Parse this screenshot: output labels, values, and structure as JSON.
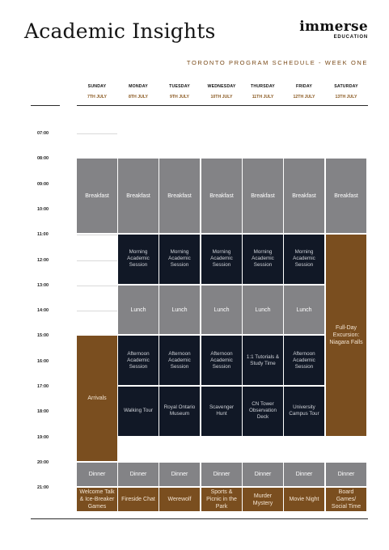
{
  "header": {
    "title": "Academic Insights",
    "logo_main": "immerse",
    "logo_sub": "EDUCATION",
    "subtitle": "TORONTO PROGRAM SCHEDULE - WEEK ONE"
  },
  "days": [
    {
      "name": "SUNDAY",
      "date": "7TH JULY"
    },
    {
      "name": "MONDAY",
      "date": "8TH JULY"
    },
    {
      "name": "TUESDAY",
      "date": "9TH JULY"
    },
    {
      "name": "WEDNESDAY",
      "date": "10TH JULY"
    },
    {
      "name": "THURSDAY",
      "date": "11TH JULY"
    },
    {
      "name": "FRIDAY",
      "date": "12TH JULY"
    },
    {
      "name": "SATURDAY",
      "date": "13TH JULY"
    }
  ],
  "times": [
    "07:00",
    "08:00",
    "09:00",
    "10:00",
    "11:00",
    "12:00",
    "13:00",
    "14:00",
    "15:00",
    "16:00",
    "17:00",
    "18:00",
    "19:00",
    "20:00",
    "21:00"
  ],
  "events": [
    {
      "day": 1,
      "start": 1,
      "end": 4,
      "style": "grey",
      "label": "Breakfast"
    },
    {
      "day": 2,
      "start": 1,
      "end": 4,
      "style": "grey",
      "label": "Breakfast"
    },
    {
      "day": 3,
      "start": 1,
      "end": 4,
      "style": "grey",
      "label": "Breakfast"
    },
    {
      "day": 4,
      "start": 1,
      "end": 4,
      "style": "grey",
      "label": "Breakfast"
    },
    {
      "day": 5,
      "start": 1,
      "end": 4,
      "style": "grey",
      "label": "Breakfast"
    },
    {
      "day": 6,
      "start": 1,
      "end": 4,
      "style": "grey",
      "label": "Breakfast"
    },
    {
      "day": 7,
      "start": 1,
      "end": 4,
      "style": "grey",
      "label": "Breakfast"
    },
    {
      "day": 2,
      "start": 4,
      "end": 6,
      "style": "dark",
      "label": "Morning Academic Session"
    },
    {
      "day": 3,
      "start": 4,
      "end": 6,
      "style": "dark",
      "label": "Morning Academic Session"
    },
    {
      "day": 4,
      "start": 4,
      "end": 6,
      "style": "dark",
      "label": "Morning Academic Session"
    },
    {
      "day": 5,
      "start": 4,
      "end": 6,
      "style": "dark",
      "label": "Morning Academic Session"
    },
    {
      "day": 6,
      "start": 4,
      "end": 6,
      "style": "dark",
      "label": "Morning Academic Session"
    },
    {
      "day": 7,
      "start": 4,
      "end": 12,
      "style": "brown",
      "label": "Full-Day Excursion: Niagara Falls"
    },
    {
      "day": 2,
      "start": 6,
      "end": 8,
      "style": "grey",
      "label": "Lunch"
    },
    {
      "day": 3,
      "start": 6,
      "end": 8,
      "style": "grey",
      "label": "Lunch"
    },
    {
      "day": 4,
      "start": 6,
      "end": 8,
      "style": "grey",
      "label": "Lunch"
    },
    {
      "day": 5,
      "start": 6,
      "end": 8,
      "style": "grey",
      "label": "Lunch"
    },
    {
      "day": 6,
      "start": 6,
      "end": 8,
      "style": "grey",
      "label": "Lunch"
    },
    {
      "day": 1,
      "start": 8,
      "end": 13,
      "style": "brown",
      "label": "Arrivals"
    },
    {
      "day": 2,
      "start": 8,
      "end": 10,
      "style": "dark",
      "label": "Afternoon Academic Session"
    },
    {
      "day": 3,
      "start": 8,
      "end": 10,
      "style": "dark",
      "label": "Afternoon Academic Session"
    },
    {
      "day": 4,
      "start": 8,
      "end": 10,
      "style": "dark",
      "label": "Afternoon Academic Session"
    },
    {
      "day": 5,
      "start": 8,
      "end": 10,
      "style": "dark",
      "label": "1:1 Tutorials & Study Time"
    },
    {
      "day": 6,
      "start": 8,
      "end": 10,
      "style": "dark",
      "label": "Afternoon Academic Session"
    },
    {
      "day": 2,
      "start": 10,
      "end": 12,
      "style": "dark",
      "label": "Walking Tour"
    },
    {
      "day": 3,
      "start": 10,
      "end": 12,
      "style": "dark",
      "label": "Royal Ontario Museum"
    },
    {
      "day": 4,
      "start": 10,
      "end": 12,
      "style": "dark",
      "label": "Scavenger Hunt"
    },
    {
      "day": 5,
      "start": 10,
      "end": 12,
      "style": "dark",
      "label": "CN Tower Observation Deck"
    },
    {
      "day": 6,
      "start": 10,
      "end": 12,
      "style": "dark",
      "label": "University Campus Tour"
    },
    {
      "day": 1,
      "start": 13,
      "end": 14,
      "style": "grey",
      "label": "Dinner"
    },
    {
      "day": 2,
      "start": 13,
      "end": 14,
      "style": "grey",
      "label": "Dinner"
    },
    {
      "day": 3,
      "start": 13,
      "end": 14,
      "style": "grey",
      "label": "Dinner"
    },
    {
      "day": 4,
      "start": 13,
      "end": 14,
      "style": "grey",
      "label": "Dinner"
    },
    {
      "day": 5,
      "start": 13,
      "end": 14,
      "style": "grey",
      "label": "Dinner"
    },
    {
      "day": 6,
      "start": 13,
      "end": 14,
      "style": "grey",
      "label": "Dinner"
    },
    {
      "day": 7,
      "start": 13,
      "end": 14,
      "style": "grey",
      "label": "Dinner"
    },
    {
      "day": 1,
      "start": 14,
      "end": 15,
      "style": "brown",
      "label": "Welcome Talk & Ice-Breaker Games"
    },
    {
      "day": 2,
      "start": 14,
      "end": 15,
      "style": "brown",
      "label": "Fireside Chat"
    },
    {
      "day": 3,
      "start": 14,
      "end": 15,
      "style": "brown",
      "label": "Werewolf"
    },
    {
      "day": 4,
      "start": 14,
      "end": 15,
      "style": "brown",
      "label": "Sports & Picnic in the Park"
    },
    {
      "day": 5,
      "start": 14,
      "end": 15,
      "style": "brown",
      "label": "Murder Mystery"
    },
    {
      "day": 6,
      "start": 14,
      "end": 15,
      "style": "brown",
      "label": "Movie Night"
    },
    {
      "day": 7,
      "start": 14,
      "end": 15,
      "style": "brown",
      "label": "Board Games/ Social Time"
    }
  ]
}
